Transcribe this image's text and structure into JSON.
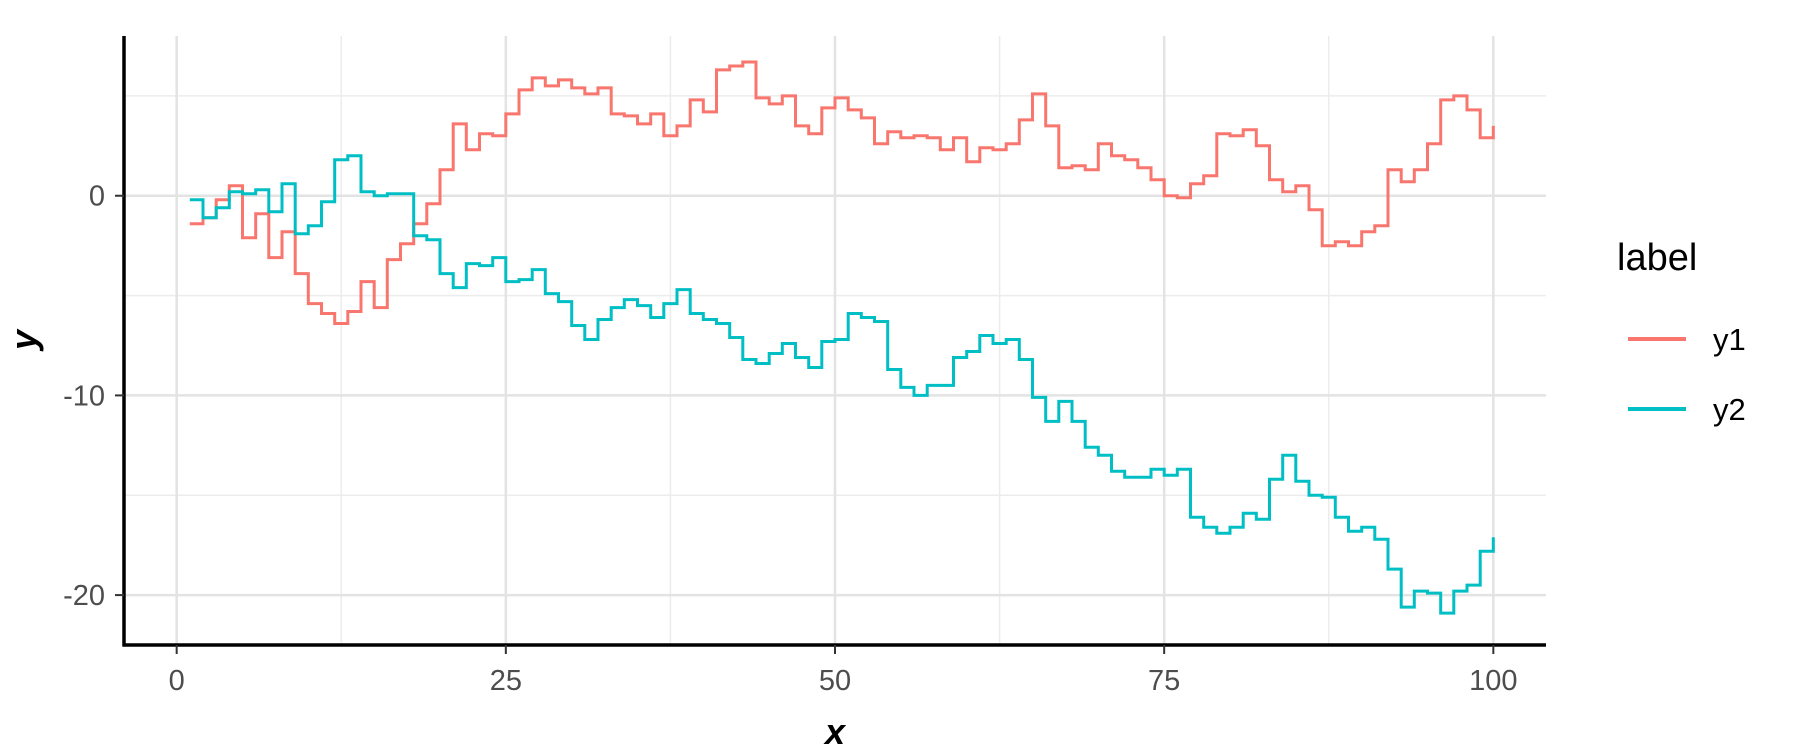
{
  "chart_data": {
    "type": "line",
    "step": true,
    "xlabel": "x",
    "ylabel": "y",
    "xlim": [
      -4,
      104
    ],
    "ylim": [
      -22.5,
      8
    ],
    "x_ticks": [
      0,
      25,
      50,
      75,
      100
    ],
    "y_ticks": [
      0,
      -10,
      -20
    ],
    "x_tick_labels": [
      "0",
      "25",
      "50",
      "75",
      "100"
    ],
    "y_tick_labels": [
      "0",
      "-10",
      "-20"
    ],
    "x_minor_gridlines": [
      12.5,
      37.5,
      62.5,
      87.5
    ],
    "y_minor_gridlines": [
      5,
      -5,
      -15
    ],
    "grid": true,
    "legend": {
      "title": "label",
      "position": "right"
    },
    "x": [
      1,
      2,
      3,
      4,
      5,
      6,
      7,
      8,
      9,
      10,
      11,
      12,
      13,
      14,
      15,
      16,
      17,
      18,
      19,
      20,
      21,
      22,
      23,
      24,
      25,
      26,
      27,
      28,
      29,
      30,
      31,
      32,
      33,
      34,
      35,
      36,
      37,
      38,
      39,
      40,
      41,
      42,
      43,
      44,
      45,
      46,
      47,
      48,
      49,
      50,
      51,
      52,
      53,
      54,
      55,
      56,
      57,
      58,
      59,
      60,
      61,
      62,
      63,
      64,
      65,
      66,
      67,
      68,
      69,
      70,
      71,
      72,
      73,
      74,
      75,
      76,
      77,
      78,
      79,
      80,
      81,
      82,
      83,
      84,
      85,
      86,
      87,
      88,
      89,
      90,
      91,
      92,
      93,
      94,
      95,
      96,
      97,
      98,
      99,
      100
    ],
    "series": [
      {
        "name": "y1",
        "color": "#F8766D",
        "values": [
          -1.4,
          -1.1,
          -0.2,
          0.5,
          -2.1,
          -0.9,
          -3.1,
          -1.8,
          -3.9,
          -5.4,
          -5.9,
          -6.4,
          -5.8,
          -4.3,
          -5.6,
          -3.2,
          -2.4,
          -1.4,
          -0.4,
          1.3,
          3.6,
          2.3,
          3.1,
          3.0,
          4.1,
          5.3,
          5.9,
          5.5,
          5.8,
          5.4,
          5.1,
          5.4,
          4.1,
          4.0,
          3.6,
          4.1,
          3.0,
          3.5,
          4.8,
          4.2,
          6.3,
          6.5,
          6.7,
          4.9,
          4.6,
          5.0,
          3.5,
          3.1,
          4.4,
          4.9,
          4.3,
          3.9,
          2.6,
          3.2,
          2.9,
          3.0,
          2.9,
          2.3,
          2.9,
          1.7,
          2.4,
          2.3,
          2.6,
          3.8,
          5.1,
          3.5,
          1.4,
          1.5,
          1.3,
          2.6,
          2.0,
          1.8,
          1.4,
          0.8,
          0.0,
          -0.1,
          0.6,
          1.0,
          3.1,
          3.0,
          3.3,
          2.5,
          0.8,
          0.2,
          0.5,
          -0.7,
          -2.5,
          -2.3,
          -2.5,
          -1.8,
          -1.5,
          1.3,
          0.7,
          1.3,
          2.6,
          4.8,
          5.0,
          4.3,
          2.9,
          3.5
        ]
      },
      {
        "name": "y2",
        "color": "#00BFC4",
        "values": [
          -0.2,
          -1.1,
          -0.6,
          0.2,
          0.1,
          0.3,
          -0.8,
          0.6,
          -1.9,
          -1.5,
          -0.3,
          1.8,
          2.0,
          0.2,
          0.0,
          0.1,
          0.1,
          -2.0,
          -2.2,
          -3.9,
          -4.6,
          -3.4,
          -3.5,
          -3.1,
          -4.3,
          -4.2,
          -3.7,
          -4.9,
          -5.3,
          -6.5,
          -7.2,
          -6.2,
          -5.6,
          -5.2,
          -5.5,
          -6.1,
          -5.4,
          -4.7,
          -5.9,
          -6.2,
          -6.4,
          -7.1,
          -8.2,
          -8.4,
          -7.9,
          -7.4,
          -8.1,
          -8.6,
          -7.3,
          -7.2,
          -5.9,
          -6.1,
          -6.3,
          -8.7,
          -9.6,
          -10.0,
          -9.5,
          -9.5,
          -8.1,
          -7.8,
          -7.0,
          -7.4,
          -7.2,
          -8.2,
          -10.1,
          -11.3,
          -10.3,
          -11.3,
          -12.6,
          -13.0,
          -13.8,
          -14.1,
          -14.1,
          -13.7,
          -14.0,
          -13.7,
          -16.1,
          -16.6,
          -16.9,
          -16.6,
          -15.9,
          -16.2,
          -14.2,
          -13.0,
          -14.3,
          -15.0,
          -15.1,
          -16.1,
          -16.8,
          -16.6,
          -17.2,
          -18.7,
          -20.6,
          -19.8,
          -19.9,
          -20.9,
          -19.8,
          -19.5,
          -17.8,
          -17.1
        ]
      }
    ]
  }
}
